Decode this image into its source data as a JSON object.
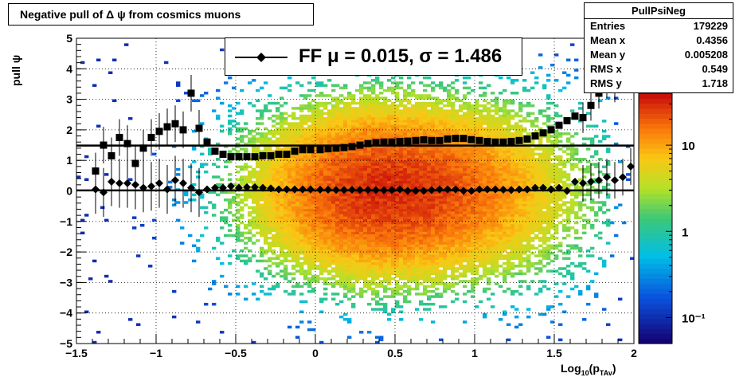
{
  "title": "Negative pull of Δ ψ from cosmics muons",
  "stats": {
    "name": "PullPsiNeg",
    "rows": [
      {
        "label": "Entries",
        "value": "179229"
      },
      {
        "label": "Mean x",
        "value": "0.4356"
      },
      {
        "label": "Mean y",
        "value": "0.005208"
      },
      {
        "label": "RMS x",
        "value": "0.549"
      },
      {
        "label": "RMS y",
        "value": "1.718"
      }
    ]
  },
  "legend": {
    "label": "FF μ =  0.015, σ =   1.486"
  },
  "axes": {
    "ylabel": "pull ψ",
    "xlabel_main": "Log",
    "xlabel_sub1": "10",
    "xlabel_mid": "(p",
    "xlabel_sub2": "TAv",
    "xlabel_end": ")"
  },
  "chart_data": {
    "type": "heatmap",
    "xlim": [
      -1.5,
      2
    ],
    "ylim": [
      -5,
      5
    ],
    "x_ticks": [
      "−1.5",
      "−1",
      "−0.5",
      "0",
      "0.5",
      "1",
      "1.5",
      "2"
    ],
    "x_tick_values": [
      -1.5,
      -1,
      -0.5,
      0,
      0.5,
      1,
      1.5,
      2
    ],
    "y_ticks": [
      "−5",
      "−4",
      "−3",
      "−2",
      "−1",
      "0",
      "1",
      "2",
      "3",
      "4",
      "5"
    ],
    "y_tick_values": [
      -5,
      -4,
      -3,
      -2,
      -1,
      0,
      1,
      2,
      3,
      4,
      5
    ],
    "grid": true,
    "colorbar": {
      "scale": "log",
      "range": [
        0.05,
        40
      ],
      "tick_labels": [
        "10",
        "1",
        "10⁻¹"
      ],
      "tick_values": [
        10,
        1,
        0.1
      ]
    },
    "density_center": {
      "x": 0.44,
      "y": 0.0
    },
    "series": [
      {
        "name": "mean",
        "x": [
          -1.38,
          -1.33,
          -1.28,
          -1.23,
          -1.18,
          -1.13,
          -1.08,
          -1.03,
          -0.98,
          -0.93,
          -0.88,
          -0.83,
          -0.78,
          -0.73,
          -0.68,
          -0.63,
          -0.58,
          -0.53,
          -0.48,
          -0.43,
          -0.38,
          -0.33,
          -0.28,
          -0.23,
          -0.18,
          -0.13,
          -0.08,
          -0.03,
          0.03,
          0.08,
          0.13,
          0.18,
          0.23,
          0.28,
          0.33,
          0.38,
          0.43,
          0.48,
          0.53,
          0.58,
          0.63,
          0.68,
          0.73,
          0.78,
          0.83,
          0.88,
          0.93,
          0.98,
          1.03,
          1.08,
          1.13,
          1.18,
          1.23,
          1.28,
          1.33,
          1.38,
          1.43,
          1.48,
          1.53,
          1.58,
          1.63,
          1.68,
          1.73,
          1.78,
          1.83,
          1.88,
          1.93,
          1.98
        ],
        "y": [
          0.05,
          -0.05,
          0.3,
          0.25,
          0.25,
          0.2,
          0.1,
          0.15,
          0.25,
          0.05,
          0.35,
          0.25,
          0.1,
          -0.05,
          0.05,
          0.1,
          0.1,
          0.15,
          0.1,
          0.12,
          0.12,
          0.1,
          0.08,
          0.05,
          0.05,
          0.05,
          0.05,
          0.05,
          0.04,
          0.04,
          0.03,
          0.03,
          0.04,
          0.03,
          0.03,
          0.03,
          0.02,
          0.03,
          0.05,
          0.0,
          0.0,
          0.0,
          0.03,
          0.05,
          0.05,
          0.05,
          0.0,
          0.0,
          0.05,
          0.05,
          0.05,
          0.04,
          0.03,
          0.05,
          0.05,
          0.1,
          0.1,
          0.05,
          0.1,
          0.0,
          0.3,
          0.25,
          0.3,
          0.35,
          0.45,
          0.35,
          0.45,
          0.8
        ]
      },
      {
        "name": "rms",
        "x": [
          -1.38,
          -1.33,
          -1.28,
          -1.23,
          -1.18,
          -1.13,
          -1.08,
          -1.03,
          -0.98,
          -0.93,
          -0.88,
          -0.83,
          -0.78,
          -0.73,
          -0.68,
          -0.63,
          -0.58,
          -0.53,
          -0.48,
          -0.43,
          -0.38,
          -0.33,
          -0.28,
          -0.23,
          -0.18,
          -0.13,
          -0.08,
          -0.03,
          0.03,
          0.08,
          0.13,
          0.18,
          0.23,
          0.28,
          0.33,
          0.38,
          0.43,
          0.48,
          0.53,
          0.58,
          0.63,
          0.68,
          0.73,
          0.78,
          0.83,
          0.88,
          0.93,
          0.98,
          1.03,
          1.08,
          1.13,
          1.18,
          1.23,
          1.28,
          1.33,
          1.38,
          1.43,
          1.48,
          1.53,
          1.58,
          1.63,
          1.68,
          1.73,
          1.78,
          1.83,
          1.88,
          1.93,
          1.98
        ],
        "y": [
          0.65,
          1.5,
          1.15,
          1.75,
          1.55,
          0.9,
          1.4,
          1.75,
          1.95,
          2.1,
          2.2,
          2.0,
          3.2,
          2.05,
          1.6,
          1.3,
          1.2,
          1.12,
          1.12,
          1.12,
          1.12,
          1.15,
          1.15,
          1.2,
          1.2,
          1.3,
          1.35,
          1.35,
          1.35,
          1.38,
          1.4,
          1.42,
          1.45,
          1.5,
          1.55,
          1.58,
          1.6,
          1.6,
          1.62,
          1.63,
          1.65,
          1.67,
          1.65,
          1.65,
          1.7,
          1.72,
          1.72,
          1.68,
          1.65,
          1.62,
          1.6,
          1.6,
          1.62,
          1.65,
          1.7,
          1.8,
          1.9,
          2.0,
          2.15,
          2.3,
          2.45,
          2.4,
          2.8,
          3.2,
          3.55,
          3.4,
          4.2,
          4.6
        ]
      }
    ],
    "fit_lines": [
      {
        "name": "mean fit",
        "y": 0.015
      },
      {
        "name": "sigma fit",
        "y": 1.486
      }
    ]
  }
}
